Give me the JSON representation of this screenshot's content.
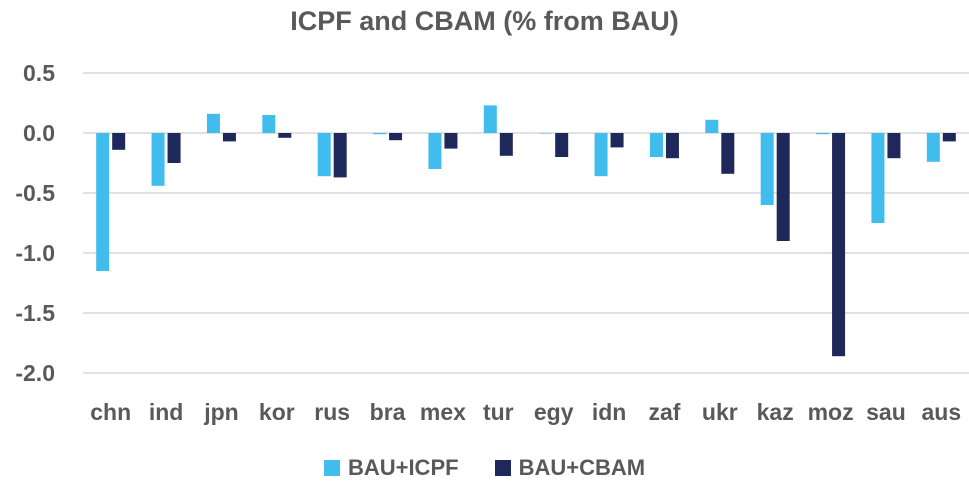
{
  "chart_data": {
    "type": "bar",
    "title": "ICPF and CBAM (% from BAU)",
    "xlabel": "",
    "ylabel": "",
    "ylim": [
      -2.0,
      0.5
    ],
    "yticks": [
      "0.5",
      "0.0",
      "-0.5",
      "-1.0",
      "-1.5",
      "-2.0"
    ],
    "ytick_values": [
      0.5,
      0.0,
      -0.5,
      -1.0,
      -1.5,
      -2.0
    ],
    "grid": true,
    "legend_position": "bottom",
    "categories": [
      "chn",
      "ind",
      "jpn",
      "kor",
      "rus",
      "bra",
      "mex",
      "tur",
      "egy",
      "idn",
      "zaf",
      "ukr",
      "kaz",
      "moz",
      "sau",
      "aus"
    ],
    "series": [
      {
        "name": "BAU+ICPF",
        "color": "#41BDED",
        "values": [
          -1.15,
          -0.44,
          0.16,
          0.15,
          -0.36,
          -0.01,
          -0.3,
          0.23,
          0.0,
          -0.36,
          -0.2,
          0.11,
          -0.6,
          -0.01,
          -0.75,
          -0.24
        ]
      },
      {
        "name": "BAU+CBAM",
        "color": "#1F285A",
        "values": [
          -0.14,
          -0.25,
          -0.07,
          -0.04,
          -0.37,
          -0.06,
          -0.13,
          -0.19,
          -0.2,
          -0.12,
          -0.21,
          -0.34,
          -0.9,
          -1.86,
          -0.21,
          -0.07
        ]
      }
    ]
  },
  "title": "ICPF and CBAM (% from BAU)",
  "legend": [
    {
      "label": "BAU+ICPF",
      "color": "#41BDED"
    },
    {
      "label": "BAU+CBAM",
      "color": "#1F285A"
    }
  ]
}
